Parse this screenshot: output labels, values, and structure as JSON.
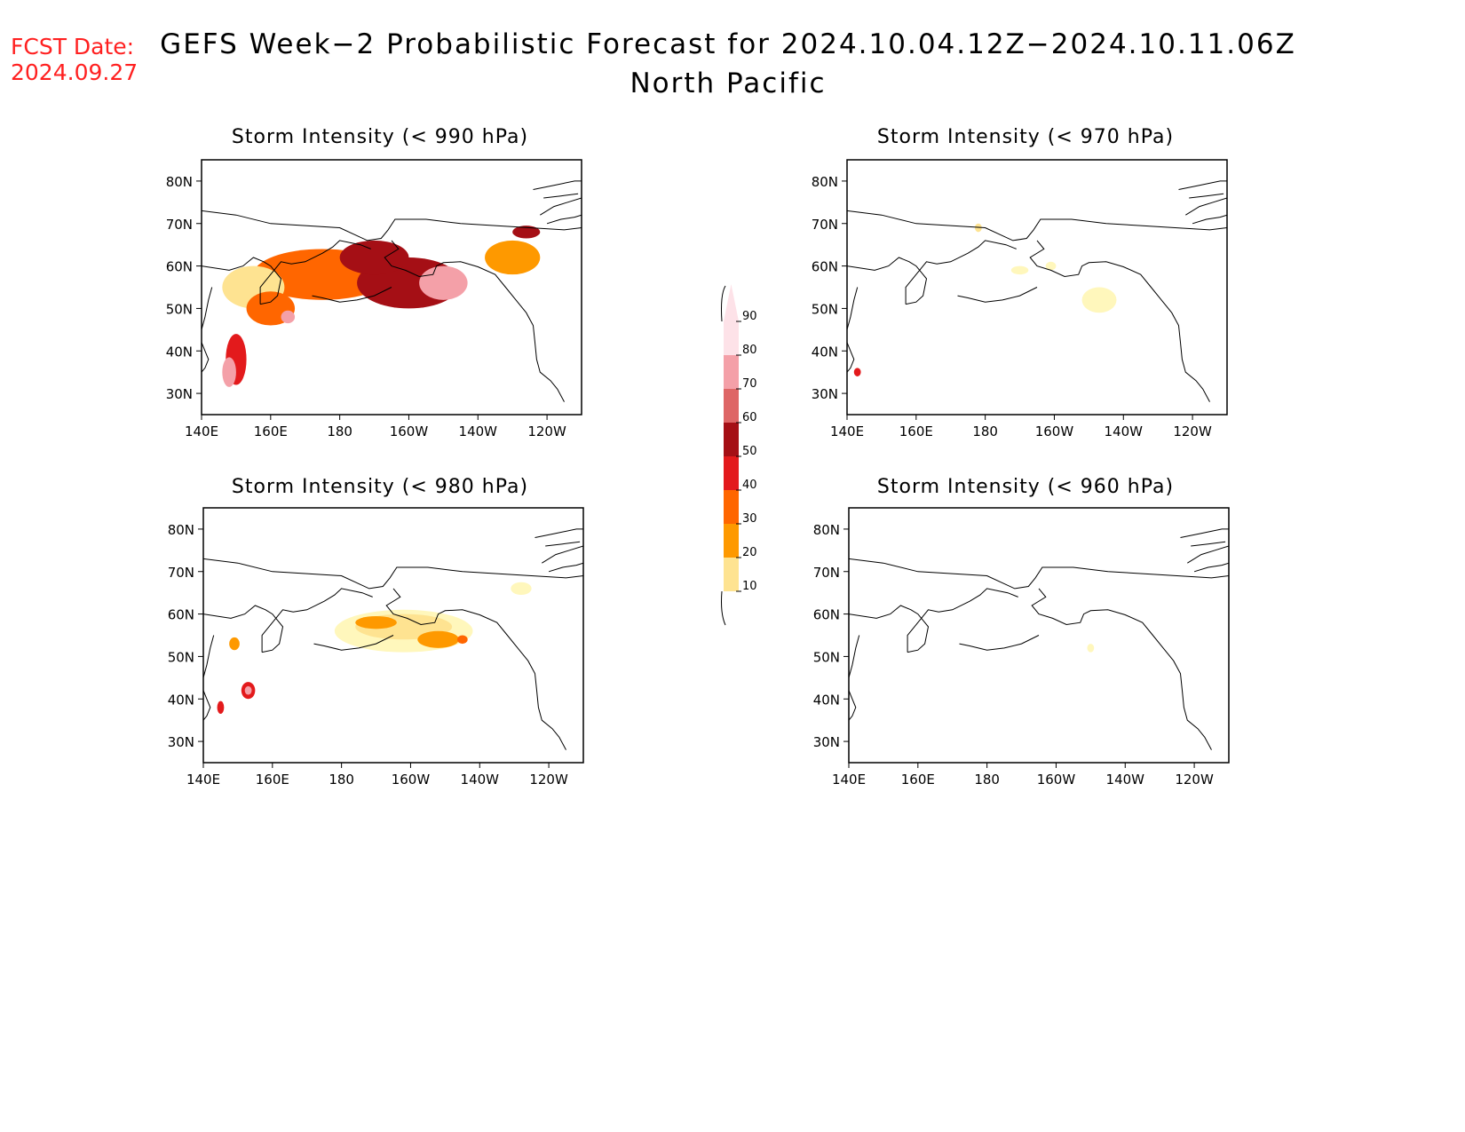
{
  "header": {
    "fcst_label": "FCST Date:",
    "fcst_date": "2024.09.27",
    "title": "GEFS Week−2 Probabilistic Forecast for 2024.10.04.12Z−2024.10.11.06Z",
    "subtitle": "North Pacific"
  },
  "colors": {
    "c10": "#fff7bc",
    "c20": "#fee391",
    "c30": "#fe9900",
    "c40": "#ff6600",
    "c50": "#e31a1c",
    "c60": "#a50f15",
    "c70": "#de6666",
    "c80": "#f4a0a8",
    "c90": "#fde2e8"
  },
  "colorbar": {
    "levels": [
      10,
      20,
      30,
      40,
      50,
      60,
      70,
      80,
      90
    ],
    "labels": [
      "10",
      "20",
      "30",
      "40",
      "50",
      "60",
      "70",
      "80",
      "90"
    ]
  },
  "axes": {
    "lon_ticks": [
      "140E",
      "160E",
      "180",
      "160W",
      "140W",
      "120W"
    ],
    "lat_ticks": [
      "80N",
      "70N",
      "60N",
      "50N",
      "40N",
      "30N"
    ]
  },
  "panels": [
    {
      "id": "p990",
      "title": "Storm Intensity (< 990 hPa)",
      "blobs": [
        {
          "lon": 175,
          "lat": 58,
          "w": 40,
          "h": 12,
          "level": 40
        },
        {
          "lon": 200,
          "lat": 56,
          "w": 30,
          "h": 12,
          "level": 60
        },
        {
          "lon": 210,
          "lat": 56,
          "w": 14,
          "h": 8,
          "level": 80
        },
        {
          "lon": 190,
          "lat": 62,
          "w": 20,
          "h": 8,
          "level": 60
        },
        {
          "lon": 155,
          "lat": 55,
          "w": 18,
          "h": 10,
          "level": 20
        },
        {
          "lon": 160,
          "lat": 50,
          "w": 14,
          "h": 8,
          "level": 40
        },
        {
          "lon": 165,
          "lat": 48,
          "w": 4,
          "h": 3,
          "level": 80
        },
        {
          "lon": 150,
          "lat": 38,
          "w": 6,
          "h": 12,
          "level": 50
        },
        {
          "lon": 148,
          "lat": 35,
          "w": 4,
          "h": 7,
          "level": 80
        },
        {
          "lon": 230,
          "lat": 62,
          "w": 16,
          "h": 8,
          "level": 30
        },
        {
          "lon": 234,
          "lat": 68,
          "w": 8,
          "h": 3,
          "level": 60
        }
      ]
    },
    {
      "id": "p970",
      "title": "Storm Intensity (< 970 hPa)",
      "blobs": [
        {
          "lon": 178,
          "lat": 69,
          "w": 2,
          "h": 2,
          "level": 20
        },
        {
          "lon": 190,
          "lat": 59,
          "w": 5,
          "h": 2,
          "level": 10
        },
        {
          "lon": 199,
          "lat": 60,
          "w": 3,
          "h": 2,
          "level": 10
        },
        {
          "lon": 213,
          "lat": 52,
          "w": 10,
          "h": 6,
          "level": 10
        },
        {
          "lon": 143,
          "lat": 35,
          "w": 2,
          "h": 2,
          "level": 50
        }
      ]
    },
    {
      "id": "p980",
      "title": "Storm Intensity (< 980 hPa)",
      "blobs": [
        {
          "lon": 198,
          "lat": 56,
          "w": 40,
          "h": 10,
          "level": 10
        },
        {
          "lon": 198,
          "lat": 57,
          "w": 28,
          "h": 6,
          "level": 20
        },
        {
          "lon": 190,
          "lat": 58,
          "w": 12,
          "h": 3,
          "level": 30
        },
        {
          "lon": 208,
          "lat": 54,
          "w": 12,
          "h": 4,
          "level": 30
        },
        {
          "lon": 215,
          "lat": 54,
          "w": 3,
          "h": 2,
          "level": 40
        },
        {
          "lon": 153,
          "lat": 42,
          "w": 4,
          "h": 4,
          "level": 50
        },
        {
          "lon": 153,
          "lat": 42,
          "w": 2,
          "h": 2,
          "level": 80
        },
        {
          "lon": 149,
          "lat": 53,
          "w": 3,
          "h": 3,
          "level": 30
        },
        {
          "lon": 145,
          "lat": 38,
          "w": 2,
          "h": 3,
          "level": 50
        },
        {
          "lon": 232,
          "lat": 66,
          "w": 6,
          "h": 3,
          "level": 10
        }
      ]
    },
    {
      "id": "p960",
      "title": "Storm Intensity (< 960 hPa)",
      "blobs": [
        {
          "lon": 210,
          "lat": 52,
          "w": 2,
          "h": 2,
          "level": 10
        }
      ]
    }
  ]
}
